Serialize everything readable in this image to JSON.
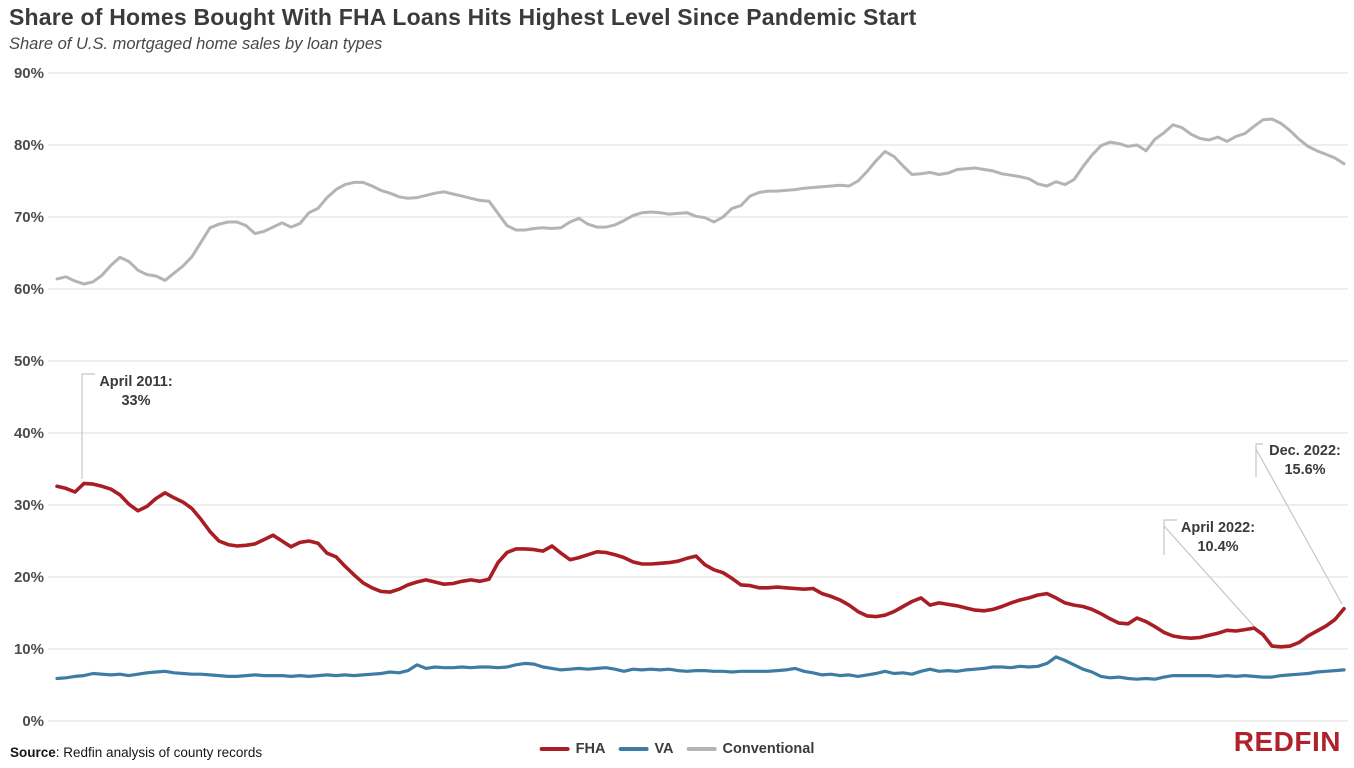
{
  "header": {
    "title": "Share of Homes Bought With FHA Loans Hits Highest Level Since Pandemic Start",
    "subtitle": "Share of U.S. mortgaged home sales by loan types"
  },
  "footer": {
    "source_label": "Source",
    "source_rest": ": Redfin analysis of county records",
    "logo_text": "REDFIN",
    "logo_color": "#b0222b"
  },
  "chart_data": {
    "type": "line",
    "title": "Share of Homes Bought With FHA Loans Hits Highest Level Since Pandemic Start",
    "subtitle": "Share of U.S. mortgaged home sales by loan types",
    "x_unit": "month",
    "x_start": "2011-01",
    "x_end": "2022-12",
    "points": 144,
    "ylim": [
      0,
      90
    ],
    "grid": "horizontal",
    "grid_color": "#dcdcdc",
    "legend_position": "bottom-center",
    "yticks": [
      {
        "label": "90%",
        "value": 90
      },
      {
        "label": "80%",
        "value": 80
      },
      {
        "label": "70%",
        "value": 70
      },
      {
        "label": "60%",
        "value": 60
      },
      {
        "label": "50%",
        "value": 50
      },
      {
        "label": "40%",
        "value": 40
      },
      {
        "label": "30%",
        "value": 30
      },
      {
        "label": "20%",
        "value": 20
      },
      {
        "label": "10%",
        "value": 10
      },
      {
        "label": "0%",
        "value": 0
      }
    ],
    "series": [
      {
        "name": "FHA",
        "color": "#a91e25",
        "values": [
          32.6,
          32.3,
          31.8,
          33.0,
          32.9,
          32.6,
          32.2,
          31.4,
          30.1,
          29.2,
          29.8,
          30.9,
          31.7,
          31.0,
          30.4,
          29.5,
          28.0,
          26.3,
          25.0,
          24.5,
          24.3,
          24.4,
          24.6,
          25.2,
          25.8,
          25.0,
          24.2,
          24.8,
          25.0,
          24.7,
          23.3,
          22.8,
          21.5,
          20.3,
          19.2,
          18.5,
          18.0,
          17.9,
          18.3,
          18.9,
          19.3,
          19.6,
          19.3,
          19.0,
          19.1,
          19.4,
          19.6,
          19.4,
          19.7,
          22.0,
          23.4,
          23.9,
          23.9,
          23.8,
          23.6,
          24.3,
          23.3,
          22.4,
          22.7,
          23.1,
          23.5,
          23.4,
          23.1,
          22.7,
          22.1,
          21.8,
          21.8,
          21.9,
          22.0,
          22.2,
          22.6,
          22.9,
          21.7,
          21.0,
          20.6,
          19.8,
          18.9,
          18.8,
          18.5,
          18.5,
          18.6,
          18.5,
          18.4,
          18.3,
          18.4,
          17.7,
          17.3,
          16.8,
          16.1,
          15.2,
          14.6,
          14.5,
          14.7,
          15.2,
          15.9,
          16.6,
          17.1,
          16.1,
          16.4,
          16.2,
          16.0,
          15.7,
          15.4,
          15.3,
          15.5,
          15.9,
          16.4,
          16.8,
          17.1,
          17.5,
          17.7,
          17.1,
          16.4,
          16.1,
          15.9,
          15.5,
          14.9,
          14.2,
          13.6,
          13.5,
          14.3,
          13.8,
          13.1,
          12.3,
          11.8,
          11.6,
          11.5,
          11.6,
          11.9,
          12.2,
          12.6,
          12.5,
          12.7,
          12.9,
          12.0,
          10.4,
          10.3,
          10.4,
          10.9,
          11.8,
          12.5,
          13.2,
          14.1,
          15.6
        ]
      },
      {
        "name": "VA",
        "color": "#3d7da4",
        "values": [
          5.9,
          6.0,
          6.2,
          6.3,
          6.6,
          6.5,
          6.4,
          6.5,
          6.3,
          6.5,
          6.7,
          6.8,
          6.9,
          6.7,
          6.6,
          6.5,
          6.5,
          6.4,
          6.3,
          6.2,
          6.2,
          6.3,
          6.4,
          6.3,
          6.3,
          6.3,
          6.2,
          6.3,
          6.2,
          6.3,
          6.4,
          6.3,
          6.4,
          6.3,
          6.4,
          6.5,
          6.6,
          6.8,
          6.7,
          7.0,
          7.8,
          7.3,
          7.5,
          7.4,
          7.4,
          7.5,
          7.4,
          7.5,
          7.5,
          7.4,
          7.5,
          7.8,
          8.0,
          7.9,
          7.5,
          7.3,
          7.1,
          7.2,
          7.3,
          7.2,
          7.3,
          7.4,
          7.2,
          6.9,
          7.2,
          7.1,
          7.2,
          7.1,
          7.2,
          7.0,
          6.9,
          7.0,
          7.0,
          6.9,
          6.9,
          6.8,
          6.9,
          6.9,
          6.9,
          6.9,
          7.0,
          7.1,
          7.3,
          6.9,
          6.7,
          6.4,
          6.5,
          6.3,
          6.4,
          6.2,
          6.4,
          6.6,
          6.9,
          6.6,
          6.7,
          6.5,
          6.9,
          7.2,
          6.9,
          7.0,
          6.9,
          7.1,
          7.2,
          7.3,
          7.5,
          7.5,
          7.4,
          7.6,
          7.5,
          7.6,
          8.0,
          8.9,
          8.4,
          7.8,
          7.2,
          6.8,
          6.2,
          6.0,
          6.1,
          5.9,
          5.8,
          5.9,
          5.8,
          6.1,
          6.3,
          6.3,
          6.3,
          6.3,
          6.3,
          6.2,
          6.3,
          6.2,
          6.3,
          6.2,
          6.1,
          6.1,
          6.3,
          6.4,
          6.5,
          6.6,
          6.8,
          6.9,
          7.0,
          7.1
        ]
      },
      {
        "name": "Conventional",
        "color": "#b4b4b4",
        "values": [
          61.4,
          61.7,
          61.1,
          60.7,
          61.0,
          61.9,
          63.3,
          64.4,
          63.8,
          62.6,
          62.0,
          61.8,
          61.2,
          62.2,
          63.2,
          64.5,
          66.5,
          68.5,
          69.0,
          69.3,
          69.3,
          68.8,
          67.7,
          68.0,
          68.6,
          69.2,
          68.6,
          69.1,
          70.6,
          71.2,
          72.7,
          73.8,
          74.5,
          74.8,
          74.8,
          74.3,
          73.7,
          73.3,
          72.8,
          72.6,
          72.7,
          73.0,
          73.3,
          73.5,
          73.2,
          72.9,
          72.6,
          72.3,
          72.2,
          70.5,
          68.8,
          68.2,
          68.2,
          68.4,
          68.5,
          68.4,
          68.5,
          69.3,
          69.8,
          69.0,
          68.6,
          68.6,
          68.9,
          69.5,
          70.2,
          70.6,
          70.7,
          70.6,
          70.4,
          70.5,
          70.6,
          70.1,
          69.9,
          69.3,
          70.0,
          71.2,
          71.6,
          72.9,
          73.4,
          73.6,
          73.6,
          73.7,
          73.8,
          74.0,
          74.1,
          74.2,
          74.3,
          74.4,
          74.3,
          75.0,
          76.3,
          77.8,
          79.1,
          78.4,
          77.1,
          75.9,
          76.0,
          76.2,
          75.9,
          76.1,
          76.6,
          76.7,
          76.8,
          76.6,
          76.4,
          76.0,
          75.8,
          75.6,
          75.3,
          74.6,
          74.3,
          74.9,
          74.5,
          75.2,
          77.0,
          78.6,
          79.9,
          80.4,
          80.2,
          79.8,
          80.0,
          79.2,
          80.8,
          81.7,
          82.8,
          82.4,
          81.5,
          80.9,
          80.7,
          81.1,
          80.5,
          81.2,
          81.6,
          82.6,
          83.5,
          83.6,
          83.0,
          82.0,
          80.8,
          79.8,
          79.2,
          78.7,
          78.2,
          77.4
        ]
      }
    ],
    "annotations": [
      {
        "id": "april-2011",
        "lines": [
          "April 2011:",
          "33%"
        ],
        "month": 3,
        "value": 33.0
      },
      {
        "id": "april-2022",
        "lines": [
          "April 2022:",
          "10.4%"
        ],
        "month": 135,
        "value": 10.4
      },
      {
        "id": "dec-2022",
        "lines": [
          "Dec. 2022:",
          "15.6%"
        ],
        "month": 143,
        "value": 15.6
      }
    ]
  }
}
